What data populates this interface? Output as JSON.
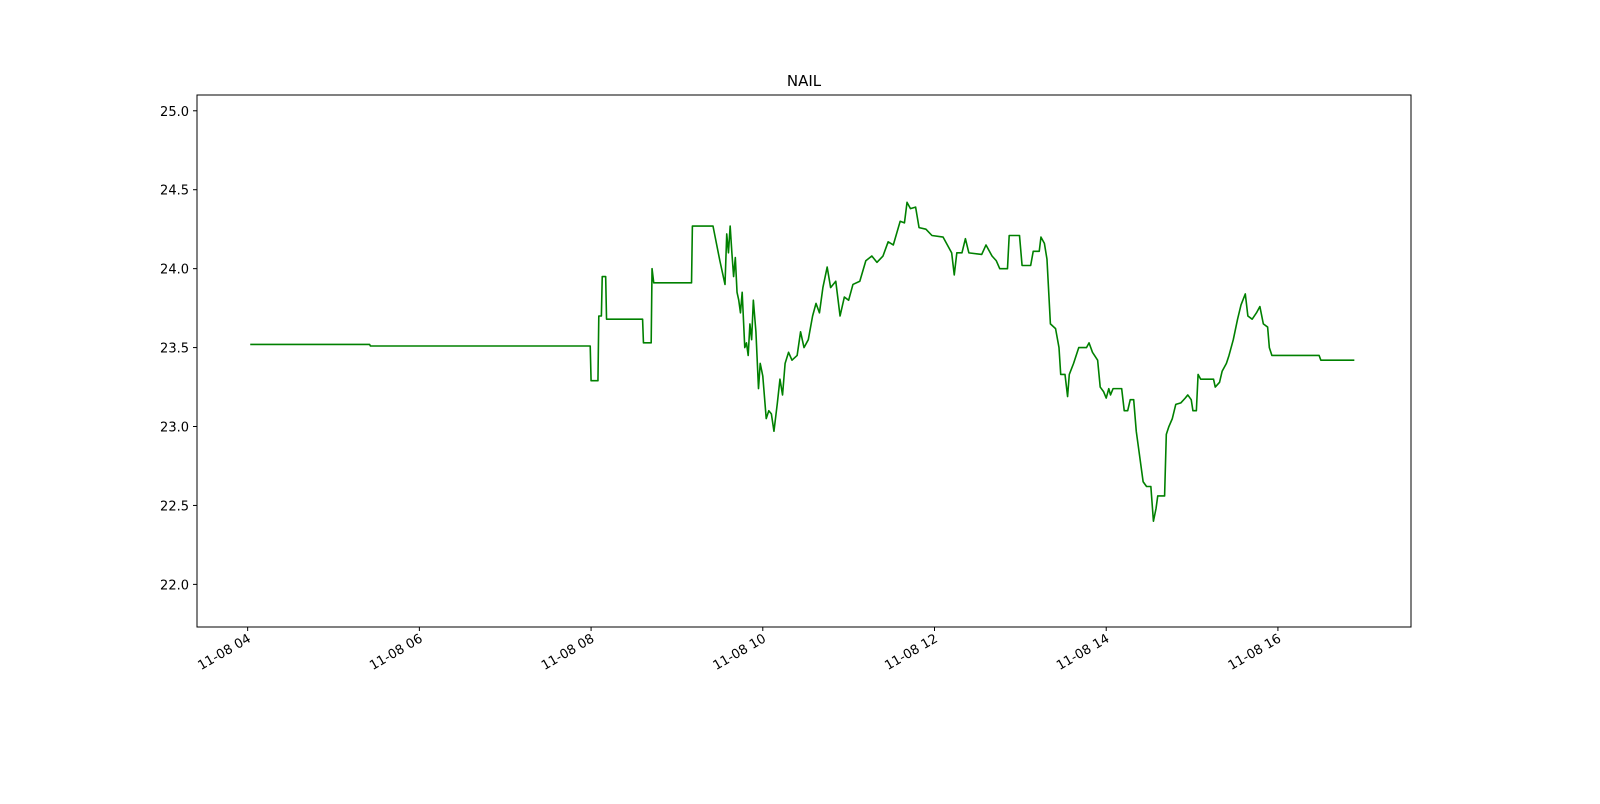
{
  "chart_data": {
    "type": "line",
    "title": "NAIL",
    "color": "#008000",
    "x": [
      4.03,
      5.42,
      5.43,
      7.99,
      8.0,
      8.08,
      8.09,
      8.12,
      8.13,
      8.17,
      8.18,
      8.6,
      8.61,
      8.7,
      8.71,
      8.73,
      9.17,
      9.18,
      9.42,
      9.5,
      9.56,
      9.58,
      9.6,
      9.62,
      9.64,
      9.66,
      9.68,
      9.7,
      9.72,
      9.74,
      9.76,
      9.79,
      9.81,
      9.83,
      9.85,
      9.87,
      9.89,
      9.92,
      9.95,
      9.97,
      10.0,
      10.04,
      10.07,
      10.1,
      10.13,
      10.17,
      10.2,
      10.23,
      10.26,
      10.3,
      10.34,
      10.4,
      10.44,
      10.48,
      10.53,
      10.58,
      10.62,
      10.66,
      10.7,
      10.75,
      10.79,
      10.85,
      10.9,
      10.95,
      11.0,
      11.05,
      11.13,
      11.2,
      11.27,
      11.33,
      11.4,
      11.46,
      11.52,
      11.6,
      11.65,
      11.68,
      11.72,
      11.78,
      11.82,
      11.9,
      11.97,
      12.1,
      12.15,
      12.2,
      12.23,
      12.26,
      12.32,
      12.36,
      12.4,
      12.55,
      12.6,
      12.67,
      12.72,
      12.76,
      12.85,
      12.87,
      12.99,
      13.02,
      13.12,
      13.15,
      13.22,
      13.24,
      13.28,
      13.31,
      13.35,
      13.41,
      13.45,
      13.47,
      13.52,
      13.55,
      13.57,
      13.62,
      13.68,
      13.77,
      13.8,
      13.84,
      13.9,
      13.93,
      13.97,
      14.0,
      14.03,
      14.05,
      14.08,
      14.18,
      14.21,
      14.25,
      14.28,
      14.32,
      14.35,
      14.38,
      14.41,
      14.43,
      14.47,
      14.52,
      14.55,
      14.58,
      14.6,
      14.68,
      14.7,
      14.73,
      14.77,
      14.81,
      14.87,
      14.92,
      14.95,
      14.99,
      15.01,
      15.05,
      15.07,
      15.1,
      15.25,
      15.27,
      15.32,
      15.35,
      15.4,
      15.43,
      15.48,
      15.53,
      15.57,
      15.62,
      15.65,
      15.7,
      15.75,
      15.79,
      15.83,
      15.88,
      15.9,
      15.93,
      16.48,
      16.5,
      16.89
    ],
    "values": [
      23.52,
      23.52,
      23.51,
      23.51,
      23.29,
      23.29,
      23.7,
      23.7,
      23.95,
      23.95,
      23.68,
      23.68,
      23.53,
      23.53,
      24.0,
      23.91,
      23.91,
      24.27,
      24.27,
      24.05,
      23.9,
      24.22,
      24.1,
      24.27,
      24.1,
      23.95,
      24.07,
      23.85,
      23.8,
      23.72,
      23.85,
      23.5,
      23.53,
      23.45,
      23.65,
      23.55,
      23.8,
      23.6,
      23.24,
      23.4,
      23.32,
      23.05,
      23.1,
      23.08,
      22.97,
      23.15,
      23.3,
      23.2,
      23.4,
      23.47,
      23.42,
      23.45,
      23.6,
      23.5,
      23.55,
      23.7,
      23.78,
      23.72,
      23.88,
      24.01,
      23.88,
      23.92,
      23.7,
      23.82,
      23.8,
      23.9,
      23.92,
      24.05,
      24.08,
      24.04,
      24.08,
      24.17,
      24.15,
      24.3,
      24.29,
      24.42,
      24.38,
      24.39,
      24.26,
      24.25,
      24.21,
      24.2,
      24.15,
      24.1,
      23.96,
      24.1,
      24.1,
      24.19,
      24.1,
      24.09,
      24.15,
      24.08,
      24.05,
      24.0,
      24.0,
      24.21,
      24.21,
      24.02,
      24.02,
      24.11,
      24.11,
      24.2,
      24.16,
      24.06,
      23.65,
      23.62,
      23.5,
      23.33,
      23.33,
      23.19,
      23.33,
      23.4,
      23.5,
      23.5,
      23.53,
      23.47,
      23.42,
      23.25,
      23.22,
      23.18,
      23.24,
      23.2,
      23.24,
      23.24,
      23.1,
      23.1,
      23.17,
      23.17,
      22.97,
      22.85,
      22.73,
      22.65,
      22.62,
      22.62,
      22.4,
      22.48,
      22.56,
      22.56,
      22.95,
      23.0,
      23.05,
      23.14,
      23.15,
      23.18,
      23.2,
      23.17,
      23.1,
      23.1,
      23.33,
      23.3,
      23.3,
      23.25,
      23.28,
      23.35,
      23.4,
      23.45,
      23.55,
      23.68,
      23.77,
      23.84,
      23.7,
      23.68,
      23.72,
      23.76,
      23.65,
      23.63,
      23.5,
      23.45,
      23.45,
      23.42,
      23.42
    ],
    "xlim": [
      3.41,
      17.55
    ],
    "xticks": [
      {
        "value": 4,
        "label": "11-08 04"
      },
      {
        "value": 6,
        "label": "11-08 06"
      },
      {
        "value": 8,
        "label": "11-08 08"
      },
      {
        "value": 10,
        "label": "11-08 10"
      },
      {
        "value": 12,
        "label": "11-08 12"
      },
      {
        "value": 14,
        "label": "11-08 14"
      },
      {
        "value": 16,
        "label": "11-08 16"
      }
    ],
    "ylim": [
      21.73,
      25.1
    ],
    "yticks": [
      {
        "value": 22,
        "label": "22.0"
      },
      22.5,
      {
        "value": 23,
        "label": "23.0"
      },
      23.5,
      {
        "value": 24,
        "label": "24.0"
      },
      24.5,
      {
        "value": 25,
        "label": "25.0"
      }
    ]
  }
}
